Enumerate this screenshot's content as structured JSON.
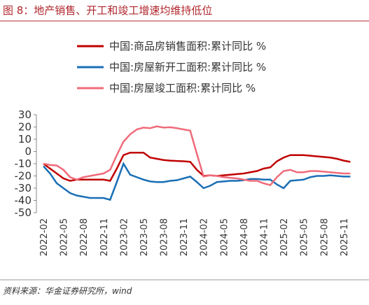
{
  "header": {
    "title": "图 8：地产销售、开工和竣工增速均维持低位"
  },
  "chart_data": {
    "type": "line",
    "categories": [
      "2022-02",
      null,
      null,
      "2022-05",
      null,
      null,
      "2022-08",
      null,
      null,
      "2022-11",
      null,
      null,
      "2023-02",
      null,
      null,
      "2023-05",
      null,
      null,
      "2023-08",
      null,
      null,
      "2023-11",
      null,
      null,
      "2024-02",
      null,
      null,
      "2024-05",
      null,
      null,
      "2024-08",
      null,
      null,
      "2024-11",
      null,
      null,
      "2025-02",
      null,
      null,
      "2025-05",
      null,
      null,
      "2025-08",
      null,
      null,
      "2025-11",
      null
    ],
    "series": [
      {
        "name": "中国:商品房销售面积:累计同比 %",
        "color": "#c00000",
        "values": [
          -10,
          -14,
          -18,
          -22,
          -24,
          -23,
          -23,
          -23,
          -23,
          -23,
          -24,
          -14,
          -3,
          -1,
          -1,
          -1,
          -5,
          -6,
          -7,
          -7.5,
          -7.8,
          -8,
          -8.5,
          -15,
          -20,
          -19.5,
          -20,
          -19.5,
          -19,
          -18.5,
          -18,
          -17,
          -16,
          -14,
          -13,
          -8,
          -5,
          -3,
          -3,
          -3,
          -3.5,
          -4,
          -4.5,
          -5,
          -6,
          -7.5,
          -8.5
        ]
      },
      {
        "name": "中国:房屋新开工面积:累计同比 %",
        "color": "#1a6fb5",
        "values": [
          -12,
          -18,
          -26,
          -30,
          -34,
          -36,
          -37,
          -38,
          -38,
          -38,
          -39.5,
          -25,
          -10,
          -19,
          -21,
          -23,
          -24.5,
          -25,
          -25,
          -24,
          -23.5,
          -22,
          -20.5,
          -25,
          -30,
          -28,
          -25,
          -24.5,
          -24,
          -24,
          -23.5,
          -22.5,
          -22.5,
          -23,
          -23,
          -27,
          -30,
          -24,
          -23.5,
          -23,
          -21,
          -20,
          -20,
          -19.5,
          -20,
          -20.5,
          -20.5
        ]
      },
      {
        "name": "中国:房屋竣工面积:累计同比 %",
        "color": "#f06b7a",
        "values": [
          -10,
          -11,
          -11.5,
          -15,
          -21,
          -23,
          -21,
          -20,
          -19,
          -18,
          -15,
          -3,
          8,
          14,
          18,
          19.5,
          19,
          20.5,
          19.5,
          19.8,
          19,
          18,
          17,
          -2,
          -20.5,
          -19.5,
          -20,
          -21,
          -21.5,
          -22,
          -23,
          -24,
          -24,
          -26,
          -27.5,
          -21,
          -16,
          -15,
          -17,
          -17,
          -16,
          -16,
          -16.5,
          -17,
          -17.5,
          -18,
          -18
        ]
      }
    ],
    "ylim": [
      -50,
      30
    ],
    "yticks": [
      -50,
      -40,
      -30,
      -20,
      -10,
      0,
      10,
      20,
      30
    ]
  },
  "source": "资料来源：华金证券研究所，wind"
}
